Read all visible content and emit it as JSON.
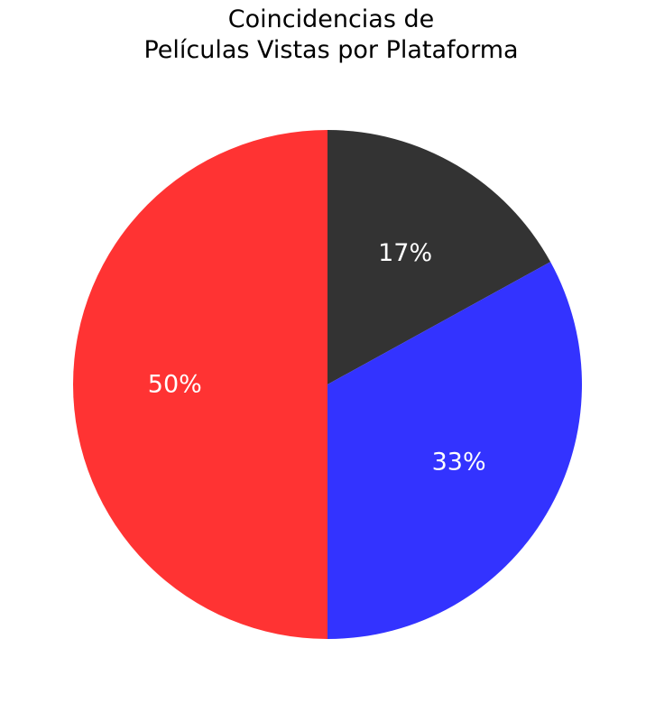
{
  "chart_data": {
    "type": "pie",
    "title_lines": [
      "Coincidencias de",
      "Películas Vistas por Plataforma"
    ],
    "start_angle_deg": 90,
    "direction": "clockwise",
    "slices": [
      {
        "label": "",
        "value": 17,
        "pct_label": "17%",
        "color": "#333333"
      },
      {
        "label": "",
        "value": 33,
        "pct_label": "33%",
        "color": "#3333ff"
      },
      {
        "label": "",
        "value": 50,
        "pct_label": "50%",
        "color": "#ff3333"
      }
    ]
  }
}
